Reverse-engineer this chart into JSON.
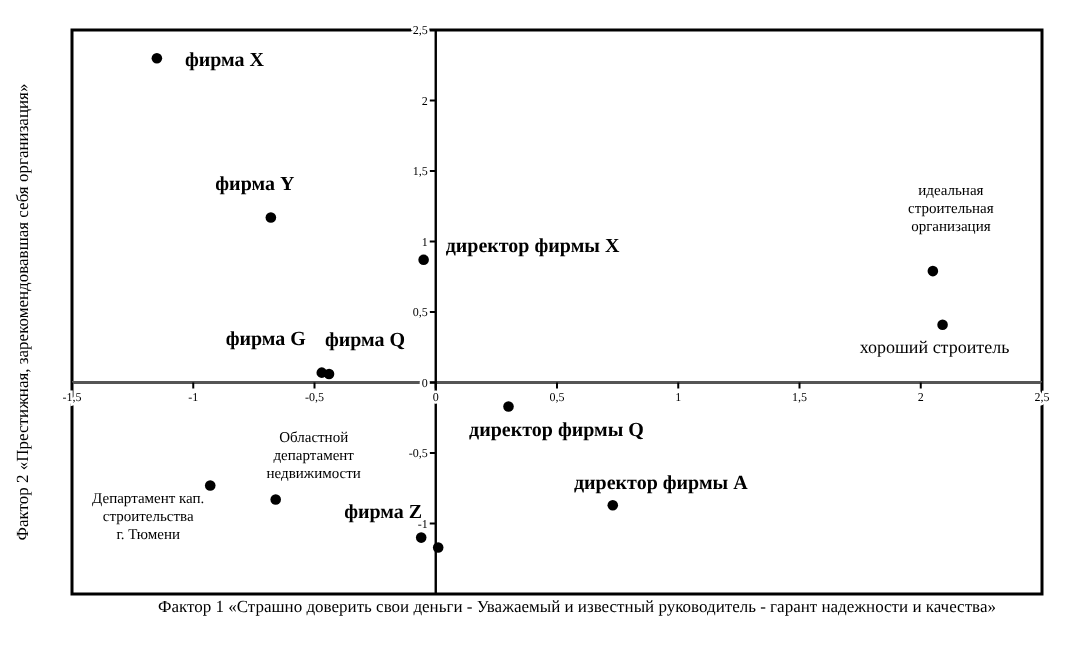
{
  "chart_data": {
    "type": "scatter",
    "xlabel": "Фактор 1 «Страшно доверить свои деньги - Уважаемый и известный руководитель - гарант надежности и качества»",
    "ylabel": "Фактор 2 «Престижная, зарекомендовавшая себя организация»",
    "xlim": [
      -1.5,
      2.5
    ],
    "ylim": [
      -1.5,
      2.5
    ],
    "xticks": [
      {
        "value": -1.5,
        "label": "-1,5"
      },
      -1,
      {
        "value": -0.5,
        "label": "-0,5"
      },
      0,
      {
        "value": 0.5,
        "label": "0,5"
      },
      1,
      {
        "value": 1.5,
        "label": "1,5"
      },
      2,
      {
        "value": 2.5,
        "label": "2,5"
      }
    ],
    "yticks": [
      -1,
      {
        "value": -0.5,
        "label": "-0,5"
      },
      0,
      {
        "value": 0.5,
        "label": "0,5"
      },
      1,
      {
        "value": 1.5,
        "label": "1,5"
      },
      2,
      {
        "value": 2.5,
        "label": "2,5"
      }
    ],
    "marker": "circle",
    "grid": false,
    "series": [
      {
        "color": "#000000",
        "x": [
          -1.15,
          -0.68,
          -0.05,
          2.05,
          2.09,
          -0.47,
          -0.44,
          0.3,
          0.73,
          -0.93,
          -0.66,
          -0.06,
          0.01
        ],
        "values": [
          2.3,
          1.17,
          0.87,
          0.79,
          0.41,
          0.07,
          0.06,
          -0.17,
          -0.87,
          -0.73,
          -0.83,
          -1.1,
          -1.17
        ]
      }
    ],
    "annotations": [
      {
        "text": "фирма X",
        "x": -1.15,
        "y": 2.3
      },
      {
        "text": "фирма Y",
        "x": -0.68,
        "y": 1.17
      },
      {
        "text": "директор фирмы X",
        "x": -0.05,
        "y": 0.87
      },
      {
        "text": "идеальная\nстроительная\nорганизация",
        "x": 2.05,
        "y": 0.79
      },
      {
        "text": "хороший строитель",
        "x": 2.09,
        "y": 0.41
      },
      {
        "text": "фирма G",
        "x": -0.47,
        "y": 0.07
      },
      {
        "text": "фирма Q",
        "x": -0.44,
        "y": 0.06
      },
      {
        "text": "директор фирмы Q",
        "x": 0.3,
        "y": -0.17
      },
      {
        "text": "директор фирмы A",
        "x": 0.73,
        "y": -0.87
      },
      {
        "text": "Департамент кап.\nстроительства\nг. Тюмени",
        "x": -0.93,
        "y": -0.73
      },
      {
        "text": "Областной\nдепартамент\nнедвижимости",
        "x": -0.66,
        "y": -0.83
      },
      {
        "text": "фирма Z",
        "x": -0.06,
        "y": -1.1
      }
    ]
  }
}
